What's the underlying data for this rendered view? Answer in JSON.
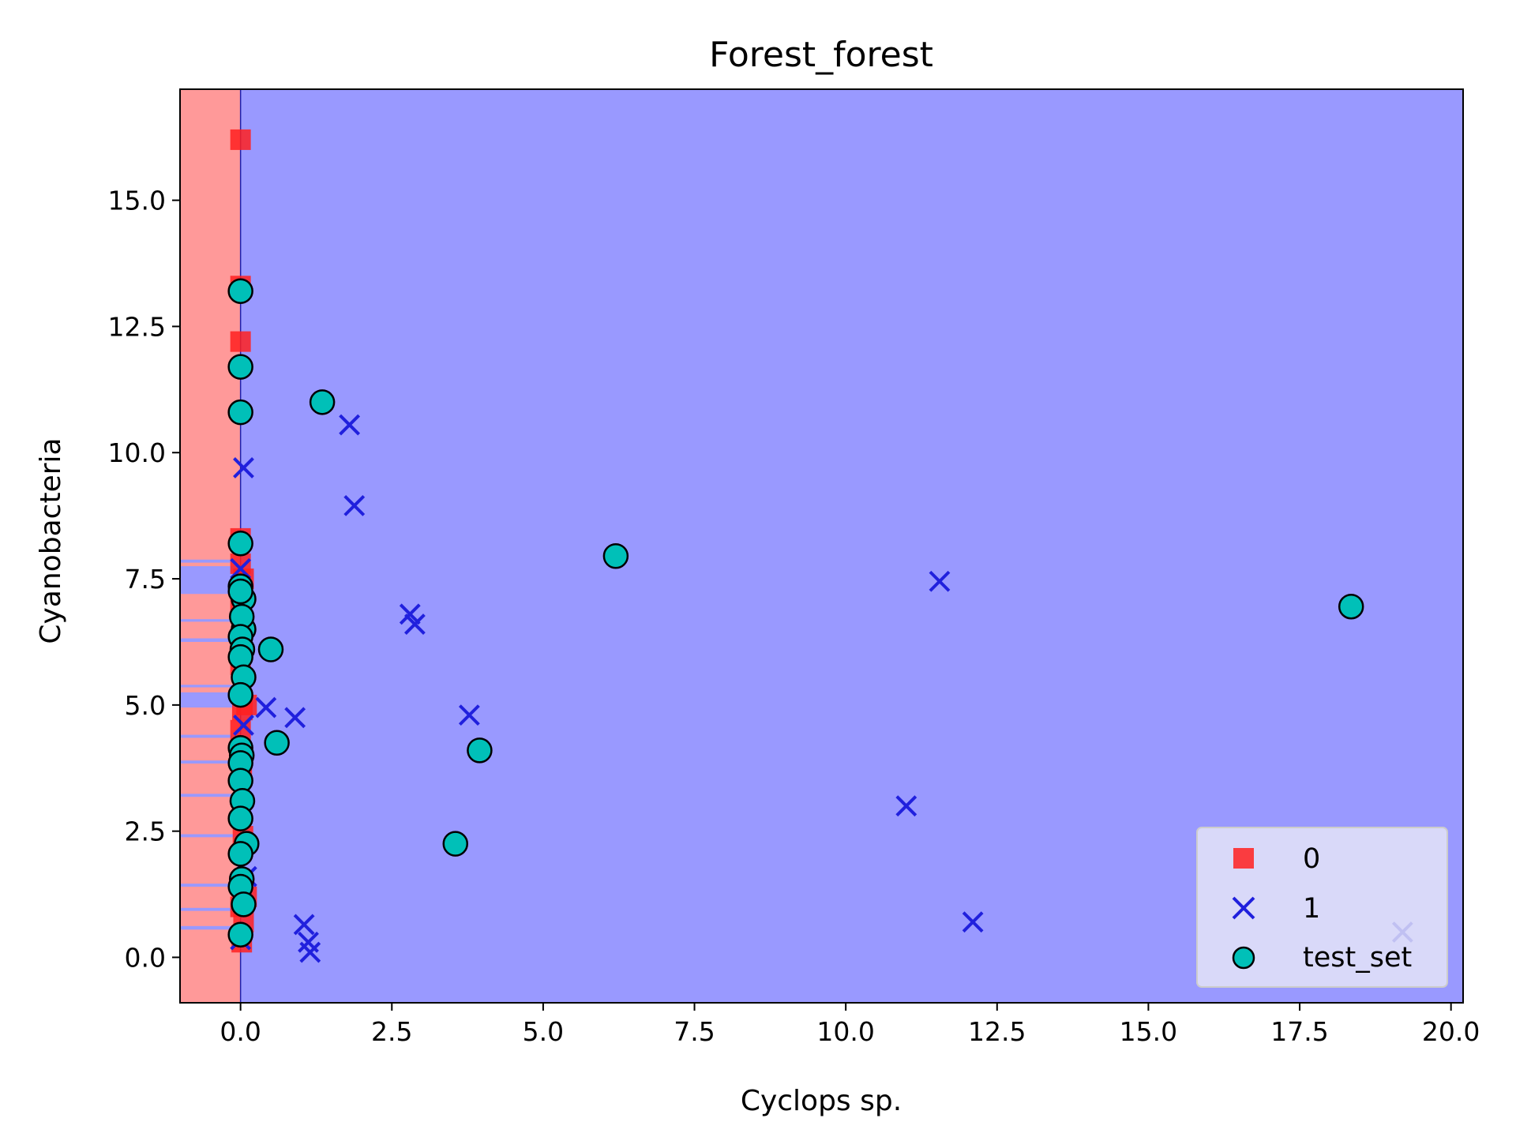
{
  "chart_data": {
    "type": "scatter",
    "title": "Forest_forest",
    "xlabel": "Cyclops sp.",
    "ylabel": "Cyanobacteria",
    "xlim": [
      -1.0,
      20.2
    ],
    "ylim": [
      -0.9,
      17.2
    ],
    "x_ticks": [
      "0.0",
      "2.5",
      "5.0",
      "7.5",
      "10.0",
      "12.5",
      "15.0",
      "17.5",
      "20.0"
    ],
    "x_tick_values": [
      0,
      2.5,
      5,
      7.5,
      10,
      12.5,
      15,
      17.5,
      20
    ],
    "y_ticks": [
      "0.0",
      "2.5",
      "5.0",
      "7.5",
      "10.0",
      "12.5",
      "15.0"
    ],
    "y_tick_values": [
      0,
      2.5,
      5,
      7.5,
      10,
      12.5,
      15
    ],
    "grid": false,
    "legend_position": "lower-right",
    "decision_regions": {
      "background_class": "1",
      "colors": {
        "0": "#ff9999",
        "1": "#9999ff"
      },
      "class0_x_range": [
        -1.0,
        0.0
      ],
      "class1_y_bands": [
        [
          0.55,
          0.62
        ],
        [
          0.92,
          0.98
        ],
        [
          1.4,
          1.46
        ],
        [
          2.38,
          2.44
        ],
        [
          3.18,
          3.24
        ],
        [
          3.84,
          3.9
        ],
        [
          4.35,
          4.41
        ],
        [
          4.95,
          5.25
        ],
        [
          5.35,
          5.4
        ],
        [
          6.25,
          6.32
        ],
        [
          6.65,
          6.7
        ],
        [
          7.2,
          7.75
        ],
        [
          7.82,
          7.88
        ]
      ]
    },
    "series": [
      {
        "name": "0",
        "marker": "square",
        "color": "#ff2020",
        "x": [
          0.0,
          0.0,
          0.0,
          0.0,
          0.0,
          0.05,
          0.0,
          0.02,
          0.0,
          0.1,
          0.03,
          0.0,
          0.02,
          0.04,
          0.1,
          0.0,
          0.05,
          0.02
        ],
        "y": [
          16.2,
          13.3,
          12.2,
          8.3,
          7.8,
          7.5,
          6.9,
          6.4,
          5.8,
          5.0,
          4.9,
          4.5,
          3.6,
          2.4,
          1.2,
          1.0,
          0.7,
          0.3
        ]
      },
      {
        "name": "1",
        "marker": "x",
        "color": "#2020dd",
        "x": [
          0.05,
          1.8,
          1.88,
          2.8,
          2.88,
          3.78,
          0.42,
          0.9,
          11.0,
          11.55,
          12.1,
          19.2,
          1.05,
          1.12,
          1.15,
          0.0,
          0.05,
          0.1,
          0.0
        ],
        "y": [
          9.7,
          10.55,
          8.95,
          6.8,
          6.6,
          4.8,
          4.95,
          4.75,
          3.0,
          7.45,
          0.7,
          0.5,
          0.65,
          0.3,
          0.1,
          7.7,
          4.6,
          1.6,
          0.35
        ]
      },
      {
        "name": "test_set",
        "marker": "circle",
        "color": "#00c0b8",
        "x": [
          0.0,
          0.0,
          0.0,
          1.35,
          6.2,
          18.35,
          0.5,
          0.6,
          3.95,
          3.55,
          0.0,
          0.0,
          0.05,
          0.0,
          0.05,
          0.02,
          0.0,
          0.03,
          0.0,
          0.05,
          0.0,
          0.0,
          0.02,
          0.0,
          0.0,
          0.1,
          0.03,
          0.0,
          0.0,
          0.02,
          0.0,
          0.05,
          0.0
        ],
        "y": [
          13.2,
          11.7,
          10.8,
          11.0,
          7.95,
          6.95,
          6.1,
          4.25,
          4.1,
          2.25,
          8.2,
          7.35,
          7.1,
          7.25,
          6.5,
          6.75,
          6.35,
          6.1,
          5.95,
          5.55,
          5.2,
          4.15,
          4.0,
          3.85,
          3.5,
          2.25,
          3.1,
          2.75,
          2.05,
          1.55,
          1.4,
          1.05,
          0.45
        ]
      }
    ]
  }
}
